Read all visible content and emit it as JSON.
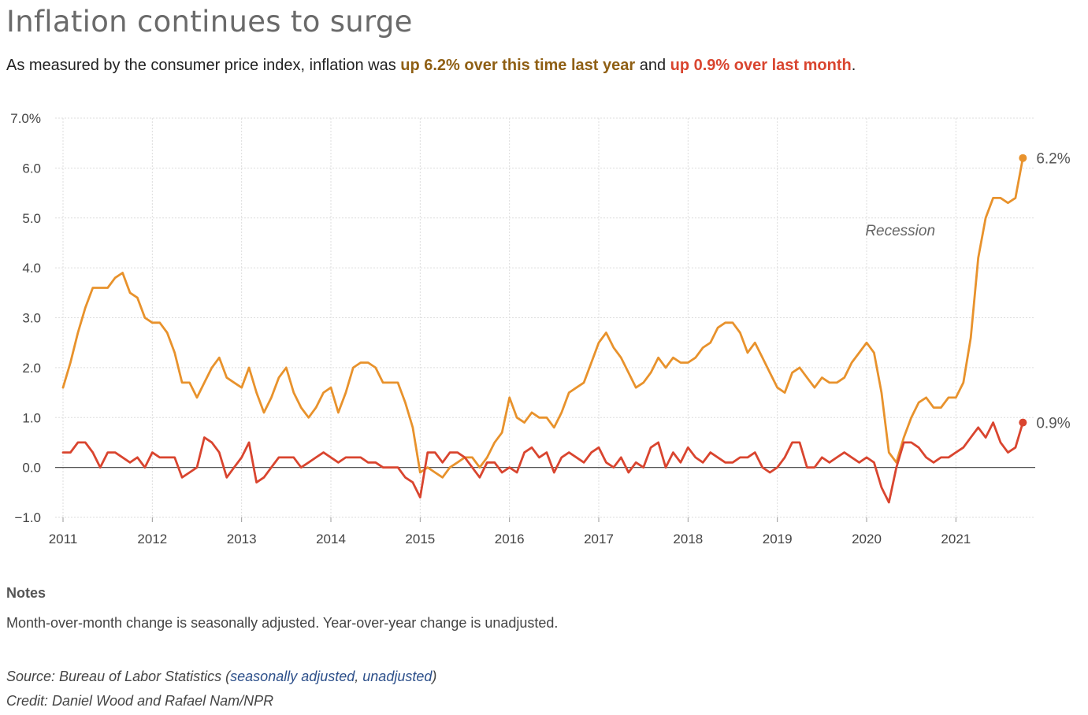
{
  "title": "Inflation continues to surge",
  "subtitle": {
    "prefix": "As measured by the consumer price index, inflation was ",
    "yoy_text": "up 6.2% over this time last year",
    "middle": " and ",
    "mom_text": "up 0.9% over last month",
    "suffix": "."
  },
  "notes": {
    "heading": "Notes",
    "text": "Month-over-month change is seasonally adjusted. Year-over-year change is unadjusted."
  },
  "source": {
    "prefix": "Source: Bureau of Labor Statistics (",
    "link1": "seasonally adjusted",
    "sep": ", ",
    "link2": "unadjusted",
    "suffix": ")"
  },
  "credit": "Credit: Daniel Wood and Rafael Nam/NPR",
  "colors": {
    "yoy": "#e8922c",
    "mom": "#d9452f",
    "grid": "#dddddd",
    "zero_line": "#555555",
    "axis_text": "#444444"
  },
  "chart_data": {
    "type": "line",
    "x_start": "2011-01",
    "x_frequency": "monthly",
    "ylim": [
      -1.0,
      7.0
    ],
    "yticks": [
      -1.0,
      0.0,
      1.0,
      2.0,
      3.0,
      4.0,
      5.0,
      6.0,
      7.0
    ],
    "ytick_labels": [
      "−1.0",
      "0.0",
      "1.0",
      "2.0",
      "3.0",
      "4.0",
      "5.0",
      "6.0",
      "7.0%"
    ],
    "xticks": [
      "2011",
      "2012",
      "2013",
      "2014",
      "2015",
      "2016",
      "2017",
      "2018",
      "2019",
      "2020",
      "2021"
    ],
    "grid": true,
    "annotation": "Recession",
    "series": [
      {
        "id": "yoy",
        "end_label": "6.2%",
        "values": [
          1.6,
          2.1,
          2.7,
          3.2,
          3.6,
          3.6,
          3.6,
          3.8,
          3.9,
          3.5,
          3.4,
          3.0,
          2.9,
          2.9,
          2.7,
          2.3,
          1.7,
          1.7,
          1.4,
          1.7,
          2.0,
          2.2,
          1.8,
          1.7,
          1.6,
          2.0,
          1.5,
          1.1,
          1.4,
          1.8,
          2.0,
          1.5,
          1.2,
          1.0,
          1.2,
          1.5,
          1.6,
          1.1,
          1.5,
          2.0,
          2.1,
          2.1,
          2.0,
          1.7,
          1.7,
          1.7,
          1.3,
          0.8,
          -0.1,
          0.0,
          -0.1,
          -0.2,
          0.0,
          0.1,
          0.2,
          0.2,
          0.0,
          0.2,
          0.5,
          0.7,
          1.4,
          1.0,
          0.9,
          1.1,
          1.0,
          1.0,
          0.8,
          1.1,
          1.5,
          1.6,
          1.7,
          2.1,
          2.5,
          2.7,
          2.4,
          2.2,
          1.9,
          1.6,
          1.7,
          1.9,
          2.2,
          2.0,
          2.2,
          2.1,
          2.1,
          2.2,
          2.4,
          2.5,
          2.8,
          2.9,
          2.9,
          2.7,
          2.3,
          2.5,
          2.2,
          1.9,
          1.6,
          1.5,
          1.9,
          2.0,
          1.8,
          1.6,
          1.8,
          1.7,
          1.7,
          1.8,
          2.1,
          2.3,
          2.5,
          2.3,
          1.5,
          0.3,
          0.1,
          0.6,
          1.0,
          1.3,
          1.4,
          1.2,
          1.2,
          1.4,
          1.4,
          1.7,
          2.6,
          4.2,
          5.0,
          5.4,
          5.4,
          5.3,
          5.4,
          6.2
        ]
      },
      {
        "id": "mom",
        "end_label": "0.9%",
        "values": [
          0.3,
          0.3,
          0.5,
          0.5,
          0.3,
          0.0,
          0.3,
          0.3,
          0.2,
          0.1,
          0.2,
          0.0,
          0.3,
          0.2,
          0.2,
          0.2,
          -0.2,
          -0.1,
          0.0,
          0.6,
          0.5,
          0.3,
          -0.2,
          0.0,
          0.2,
          0.5,
          -0.3,
          -0.2,
          0.0,
          0.2,
          0.2,
          0.2,
          0.0,
          0.1,
          0.2,
          0.3,
          0.2,
          0.1,
          0.2,
          0.2,
          0.2,
          0.1,
          0.1,
          0.0,
          0.0,
          0.0,
          -0.2,
          -0.3,
          -0.6,
          0.3,
          0.3,
          0.1,
          0.3,
          0.3,
          0.2,
          0.0,
          -0.2,
          0.1,
          0.1,
          -0.1,
          0.0,
          -0.1,
          0.3,
          0.4,
          0.2,
          0.3,
          -0.1,
          0.2,
          0.3,
          0.2,
          0.1,
          0.3,
          0.4,
          0.1,
          0.0,
          0.2,
          -0.1,
          0.1,
          0.0,
          0.4,
          0.5,
          0.0,
          0.3,
          0.1,
          0.4,
          0.2,
          0.1,
          0.3,
          0.2,
          0.1,
          0.1,
          0.2,
          0.2,
          0.3,
          0.0,
          -0.1,
          0.0,
          0.2,
          0.5,
          0.5,
          0.0,
          0.0,
          0.2,
          0.1,
          0.2,
          0.3,
          0.2,
          0.1,
          0.2,
          0.1,
          -0.4,
          -0.7,
          0.0,
          0.5,
          0.5,
          0.4,
          0.2,
          0.1,
          0.2,
          0.2,
          0.3,
          0.4,
          0.6,
          0.8,
          0.6,
          0.9,
          0.5,
          0.3,
          0.4,
          0.9
        ]
      }
    ]
  }
}
